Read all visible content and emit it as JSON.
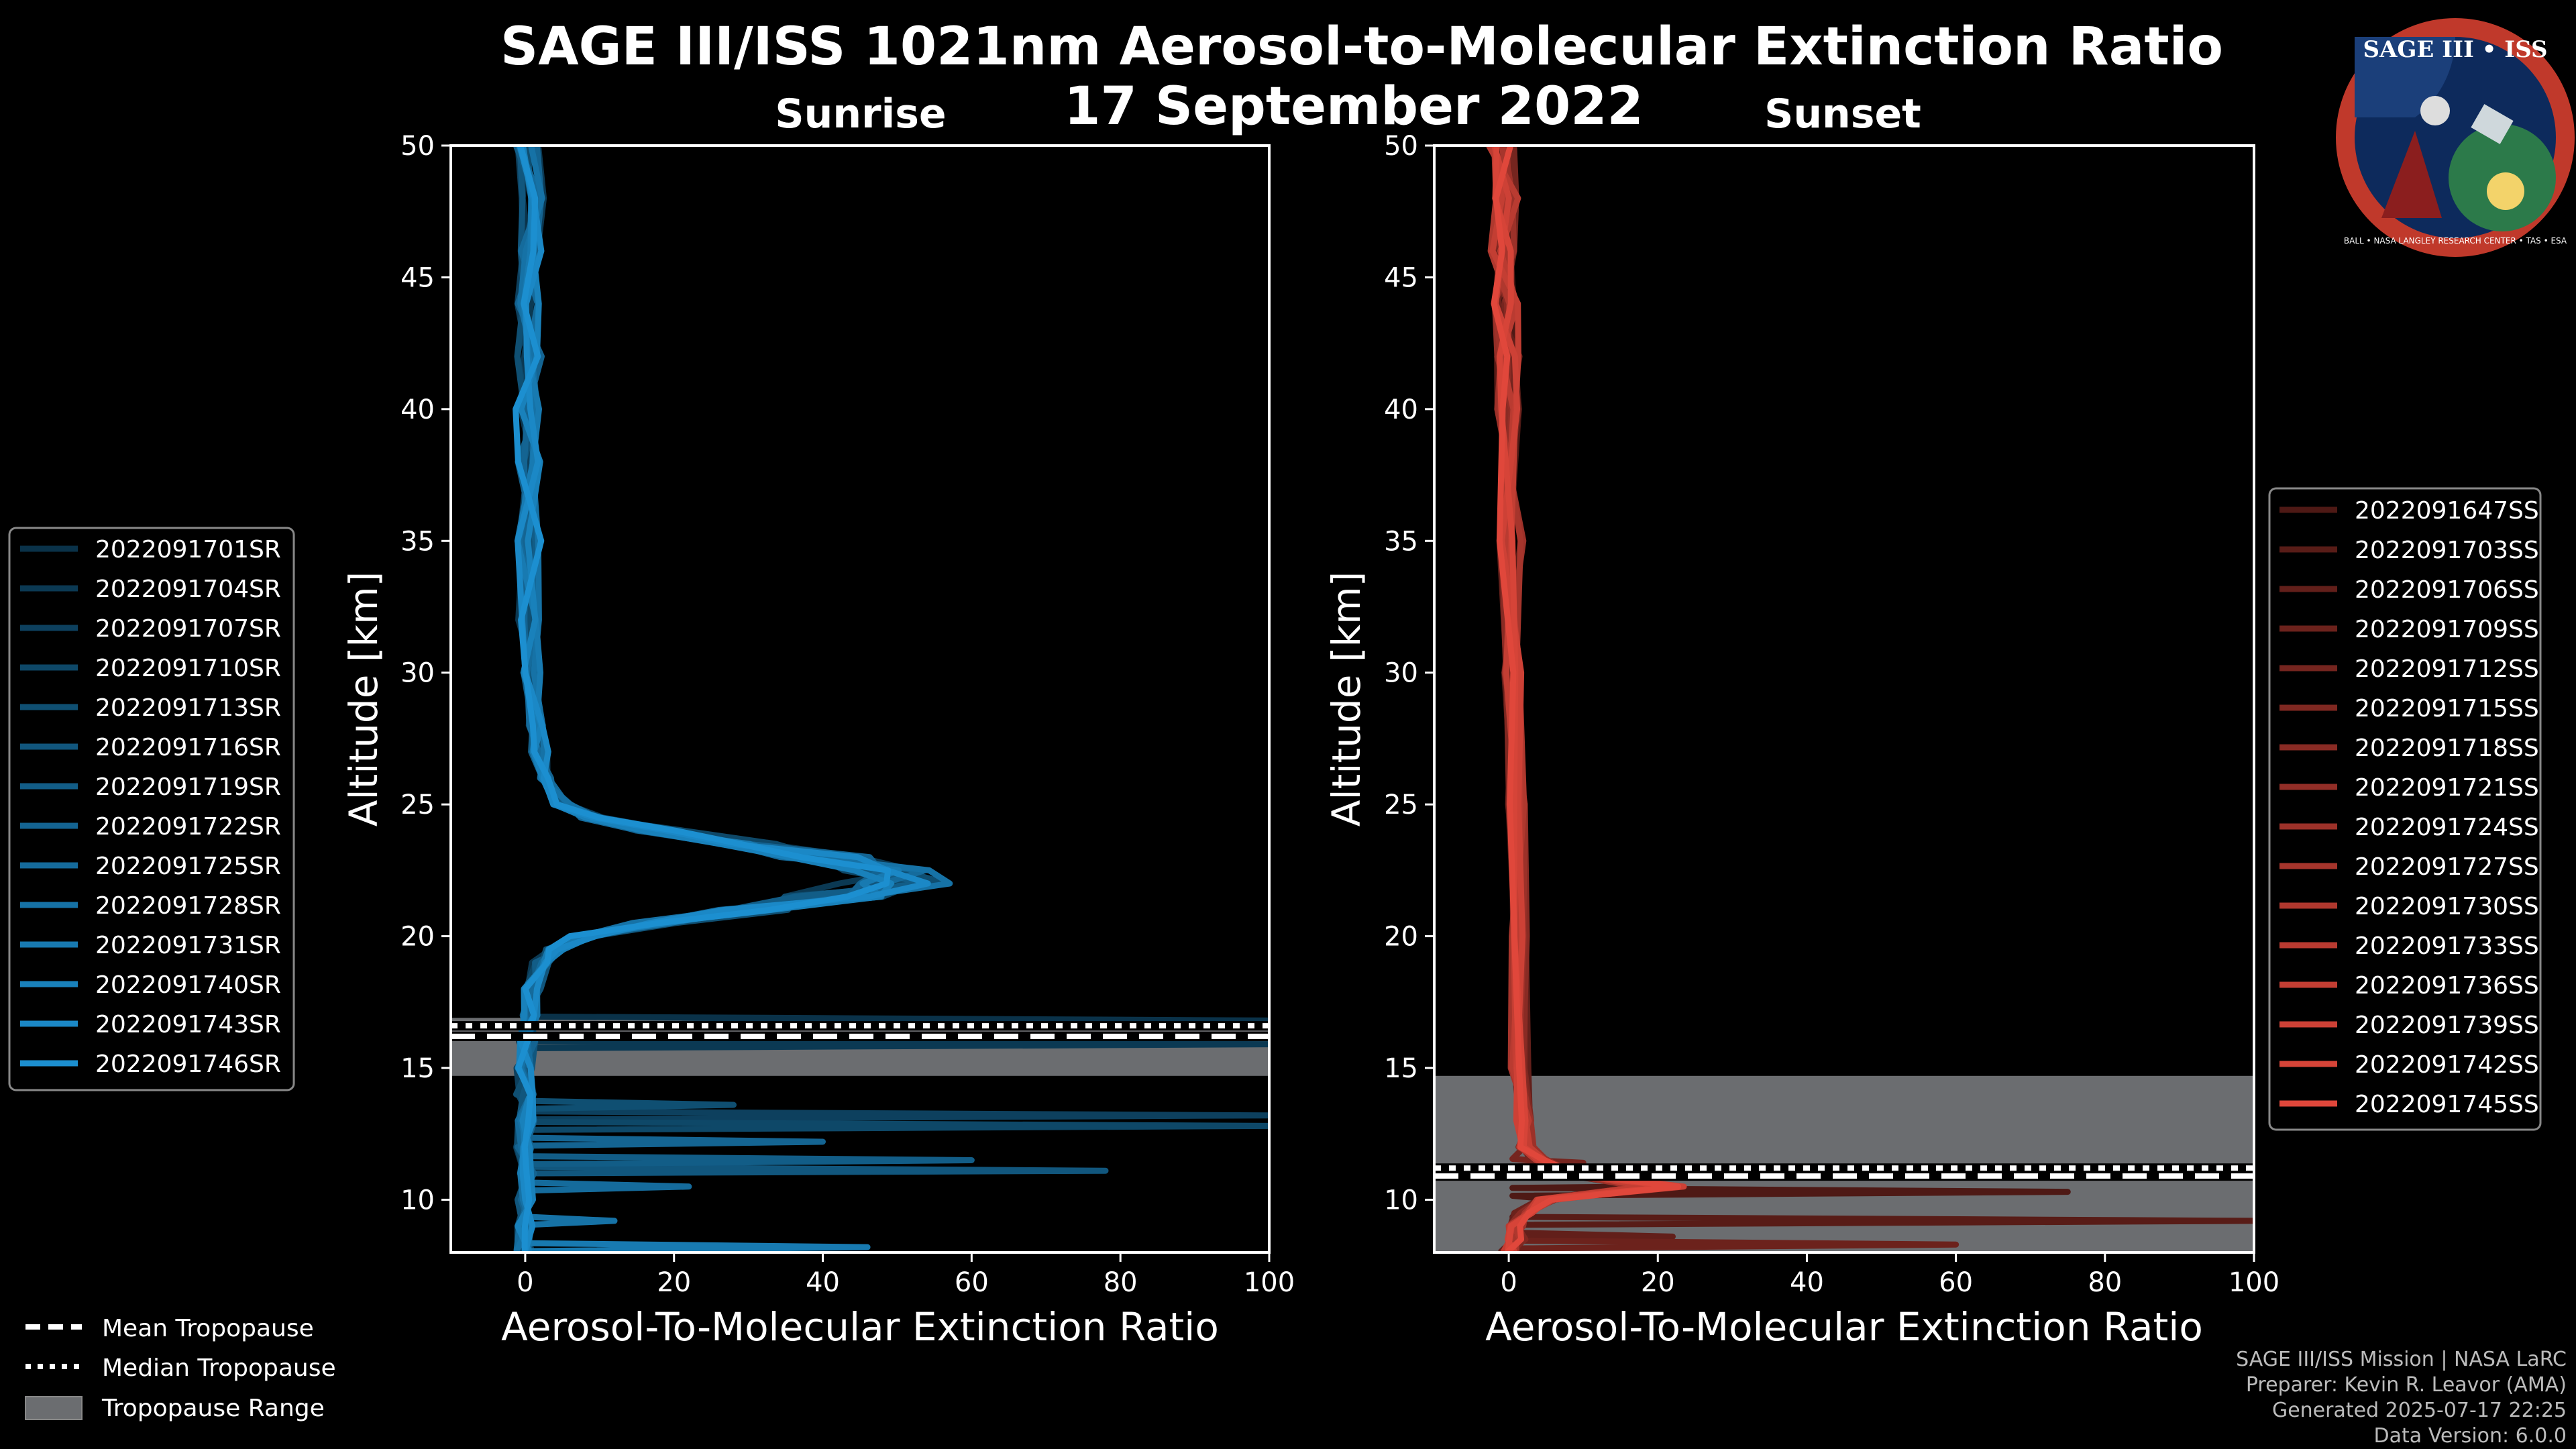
{
  "title_line1": "SAGE III/ISS 1021nm Aerosol-to-Molecular Extinction Ratio",
  "title_line2": "17 September 2022",
  "logo": {
    "name": "SAGE III • ISS",
    "caption": "BALL • NASA LANGLEY RESEARCH CENTER • TAS • ESA"
  },
  "footer": {
    "line1": "SAGE III/ISS Mission | NASA LaRC",
    "line2": "Preparer: Kevin R. Leavor (AMA)",
    "line3": "Generated 2025-07-17 22:25",
    "line4": "Data Version: 6.0.0"
  },
  "tropo_legend": {
    "mean": "Mean Tropopause",
    "median": "Median Tropopause",
    "range": "Tropopause Range"
  },
  "chart_data": [
    {
      "type": "line",
      "panel": "sunrise",
      "title": "Sunrise",
      "xlabel": "Aerosol-To-Molecular Extinction Ratio",
      "ylabel": "Altitude [km]",
      "xlim": [
        -10,
        100
      ],
      "ylim": [
        8,
        50
      ],
      "xticks": [
        0,
        20,
        40,
        60,
        80,
        100
      ],
      "yticks": [
        10,
        15,
        20,
        25,
        30,
        35,
        40,
        45,
        50
      ],
      "tropopause": {
        "mean": 16.2,
        "median": 16.6,
        "range": [
          14.7,
          16.9
        ]
      },
      "base_color": "#1c8fd0",
      "legend_position": "left outside",
      "series_names": [
        "2022091701SR",
        "2022091704SR",
        "2022091707SR",
        "2022091710SR",
        "2022091713SR",
        "2022091716SR",
        "2022091719SR",
        "2022091722SR",
        "2022091725SR",
        "2022091728SR",
        "2022091731SR",
        "2022091740SR",
        "2022091743SR",
        "2022091746SR"
      ],
      "profile_shape": [
        [
          50,
          0.5
        ],
        [
          48,
          1.0
        ],
        [
          46,
          0.8
        ],
        [
          44,
          0.6
        ],
        [
          42,
          0.5
        ],
        [
          40,
          0.4
        ],
        [
          38,
          0.3
        ],
        [
          35,
          0.5
        ],
        [
          32,
          0.8
        ],
        [
          30,
          1.0
        ],
        [
          28,
          1.5
        ],
        [
          27,
          2.0
        ],
        [
          26,
          3.0
        ],
        [
          25,
          5.0
        ],
        [
          24.5,
          9
        ],
        [
          24,
          18
        ],
        [
          23.5,
          30
        ],
        [
          23,
          40
        ],
        [
          22.5,
          48
        ],
        [
          22,
          50
        ],
        [
          21.5,
          42
        ],
        [
          21,
          30
        ],
        [
          20.5,
          18
        ],
        [
          20,
          8
        ],
        [
          19.5,
          4
        ],
        [
          19,
          2
        ],
        [
          18,
          1
        ],
        [
          17,
          0.5
        ],
        [
          16,
          0.3
        ],
        [
          15,
          0
        ],
        [
          14,
          0
        ],
        [
          13,
          0
        ],
        [
          12,
          0
        ],
        [
          11,
          0
        ],
        [
          10,
          0
        ],
        [
          9,
          0
        ],
        [
          8,
          0
        ]
      ],
      "outliers": [
        [
          16.8,
          100
        ],
        [
          15.9,
          100
        ],
        [
          13.2,
          100
        ],
        [
          12.8,
          100
        ],
        [
          13.6,
          28
        ],
        [
          11.1,
          78
        ],
        [
          11.5,
          60
        ],
        [
          12.2,
          40
        ],
        [
          10.5,
          22
        ],
        [
          9.2,
          12
        ],
        [
          8.2,
          46
        ]
      ]
    },
    {
      "type": "line",
      "panel": "sunset",
      "title": "Sunset",
      "xlabel": "Aerosol-To-Molecular Extinction Ratio",
      "ylabel": "Altitude [km]",
      "xlim": [
        -10,
        100
      ],
      "ylim": [
        8,
        50
      ],
      "xticks": [
        0,
        20,
        40,
        60,
        80,
        100
      ],
      "yticks": [
        10,
        15,
        20,
        25,
        30,
        35,
        40,
        45,
        50
      ],
      "tropopause": {
        "mean": 10.9,
        "median": 11.2,
        "range": [
          8,
          14.7
        ]
      },
      "base_color": "#e0473b",
      "legend_position": "right outside",
      "series_names": [
        "2022091647SS",
        "2022091703SS",
        "2022091706SS",
        "2022091709SS",
        "2022091712SS",
        "2022091715SS",
        "2022091718SS",
        "2022091721SS",
        "2022091724SS",
        "2022091727SS",
        "2022091730SS",
        "2022091733SS",
        "2022091736SS",
        "2022091739SS",
        "2022091742SS",
        "2022091745SS"
      ],
      "profile_shape": [
        [
          50,
          -1.0
        ],
        [
          48,
          -0.5
        ],
        [
          46,
          -0.8
        ],
        [
          44,
          -0.3
        ],
        [
          42,
          -0.2
        ],
        [
          40,
          0.0
        ],
        [
          35,
          0.3
        ],
        [
          30,
          0.6
        ],
        [
          25,
          1.0
        ],
        [
          20,
          1.2
        ],
        [
          15,
          1.4
        ],
        [
          13,
          1.8
        ],
        [
          12,
          2.5
        ],
        [
          11.5,
          4
        ],
        [
          11,
          8
        ],
        [
          10.5,
          20
        ],
        [
          10,
          5
        ],
        [
          9.5,
          2
        ],
        [
          9,
          1
        ],
        [
          8.5,
          1
        ],
        [
          8,
          0
        ]
      ],
      "outliers": [
        [
          10.3,
          75
        ],
        [
          9.2,
          100
        ],
        [
          8.6,
          22
        ],
        [
          8.3,
          60
        ],
        [
          11.4,
          10
        ]
      ]
    }
  ]
}
